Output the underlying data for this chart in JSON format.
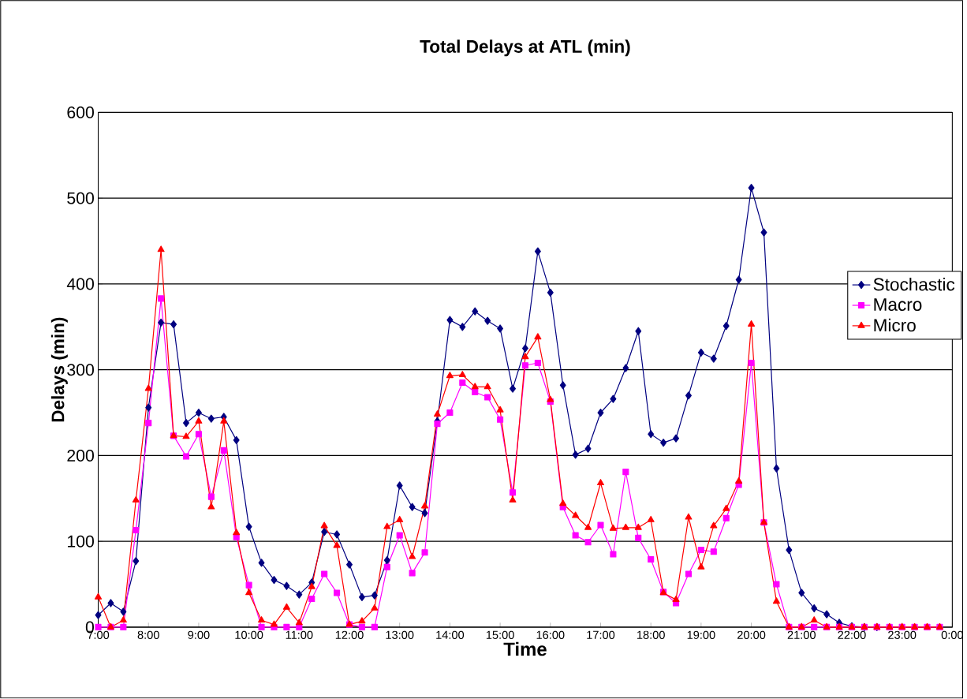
{
  "chart_data": {
    "type": "line",
    "title": "Total Delays at ATL (min)",
    "xlabel": "Time",
    "ylabel": "Delays (min)",
    "x": [
      7,
      7.25,
      7.5,
      7.75,
      8,
      8.25,
      8.5,
      8.75,
      9,
      9.25,
      9.5,
      9.75,
      10,
      10.25,
      10.5,
      10.75,
      11,
      11.25,
      11.5,
      11.75,
      12,
      12.25,
      12.5,
      12.75,
      13,
      13.25,
      13.5,
      13.75,
      14,
      14.25,
      14.5,
      14.75,
      15,
      15.25,
      15.5,
      15.75,
      16,
      16.25,
      16.5,
      16.75,
      17,
      17.25,
      17.5,
      17.75,
      18,
      18.25,
      18.5,
      18.75,
      19,
      19.25,
      19.5,
      19.75,
      20,
      20.25,
      20.5,
      20.75,
      21,
      21.25,
      21.5,
      21.75,
      22,
      22.25,
      22.5,
      22.75,
      23,
      23.25,
      23.5,
      23.75
    ],
    "series": [
      {
        "name": "Stochastic",
        "color": "#000080",
        "marker": "diamond",
        "values": [
          14,
          28,
          18,
          77,
          256,
          355,
          353,
          238,
          250,
          243,
          245,
          218,
          117,
          75,
          55,
          48,
          38,
          52,
          111,
          108,
          73,
          35,
          37,
          78,
          165,
          140,
          133,
          240,
          358,
          350,
          368,
          357,
          348,
          278,
          325,
          438,
          390,
          282,
          201,
          208,
          250,
          266,
          302,
          345,
          225,
          215,
          220,
          270,
          320,
          313,
          351,
          405,
          512,
          460,
          185,
          90,
          40,
          22,
          15,
          5,
          1,
          0,
          0,
          null,
          null,
          null,
          null,
          null
        ]
      },
      {
        "name": "Macro",
        "color": "#ff00ff",
        "marker": "square",
        "values": [
          0,
          0,
          0,
          113,
          238,
          383,
          223,
          199,
          225,
          152,
          206,
          105,
          49,
          0,
          0,
          0,
          0,
          33,
          62,
          40,
          3,
          0,
          0,
          70,
          107,
          63,
          87,
          237,
          250,
          285,
          274,
          268,
          242,
          157,
          305,
          308,
          263,
          140,
          107,
          99,
          119,
          85,
          181,
          104,
          79,
          41,
          28,
          62,
          90,
          88,
          127,
          166,
          308,
          122,
          50,
          0,
          0,
          0,
          0,
          0,
          0,
          0,
          0,
          0,
          0,
          0,
          0,
          0
        ]
      },
      {
        "name": "Micro",
        "color": "#ff0000",
        "marker": "triangle",
        "values": [
          35,
          0,
          8,
          148,
          278,
          440,
          223,
          222,
          240,
          140,
          240,
          110,
          40,
          8,
          3,
          23,
          5,
          47,
          118,
          95,
          3,
          7,
          22,
          117,
          125,
          82,
          141,
          248,
          293,
          294,
          280,
          280,
          253,
          148,
          315,
          338,
          265,
          144,
          130,
          116,
          168,
          115,
          116,
          116,
          125,
          40,
          32,
          128,
          70,
          118,
          138,
          170,
          353,
          122,
          30,
          0,
          0,
          8,
          0,
          0,
          0,
          0,
          0,
          0,
          0,
          0,
          0,
          0
        ]
      }
    ],
    "xlim": [
      7,
      24
    ],
    "xticks": [
      {
        "value": 7,
        "label": "7:00"
      },
      {
        "value": 8,
        "label": "8:00"
      },
      {
        "value": 9,
        "label": "9:00"
      },
      {
        "value": 10,
        "label": "10:00"
      },
      {
        "value": 11,
        "label": "11:00"
      },
      {
        "value": 12,
        "label": "12:00"
      },
      {
        "value": 13,
        "label": "13:00"
      },
      {
        "value": 14,
        "label": "14:00"
      },
      {
        "value": 15,
        "label": "15:00"
      },
      {
        "value": 16,
        "label": "16:00"
      },
      {
        "value": 17,
        "label": "17:00"
      },
      {
        "value": 18,
        "label": "18:00"
      },
      {
        "value": 19,
        "label": "19:00"
      },
      {
        "value": 20,
        "label": "20:00"
      },
      {
        "value": 21,
        "label": "21:00"
      },
      {
        "value": 22,
        "label": "22:00"
      },
      {
        "value": 23,
        "label": "23:00"
      },
      {
        "value": 24,
        "label": "0:00"
      }
    ],
    "ylim": [
      0,
      600
    ],
    "yticks": [
      0,
      100,
      200,
      300,
      400,
      500,
      600
    ],
    "grid": "y",
    "legend": "right",
    "line_style": "solid"
  }
}
